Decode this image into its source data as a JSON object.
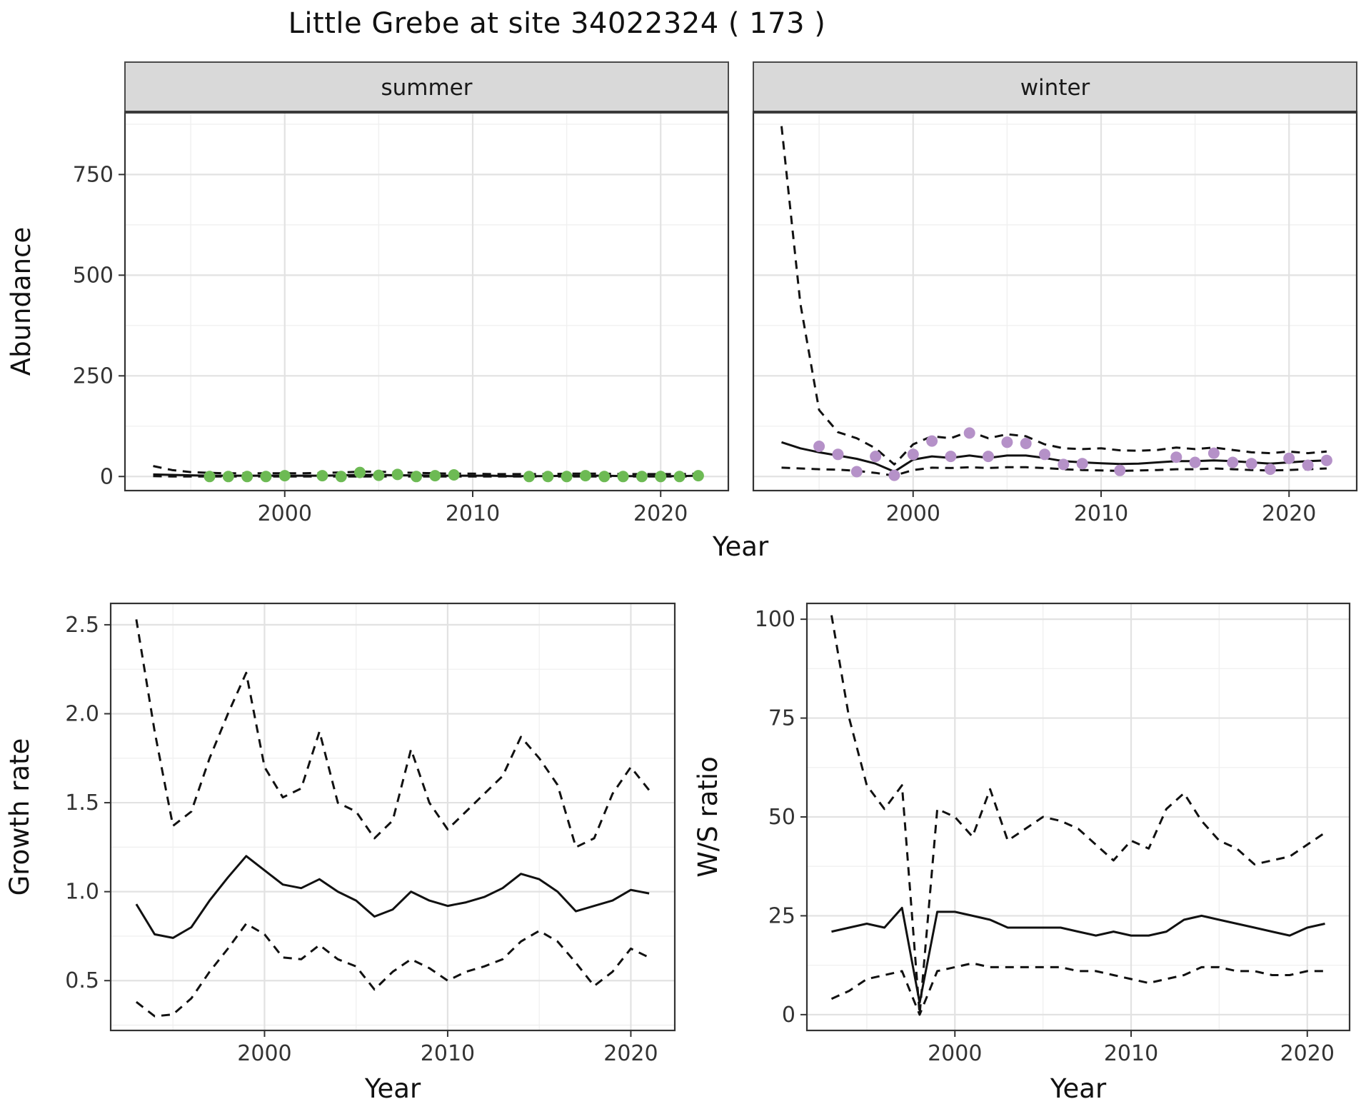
{
  "title": "Little Grebe at site 34022324 ( 173 )",
  "colors": {
    "summer_point": "#6dba54",
    "winter_point": "#b591c8",
    "line": "#111111",
    "grid_major": "#e2e2e2",
    "grid_minor": "#f0f0f0",
    "strip_bg": "#d9d9d9",
    "panel_border": "#333333",
    "tick": "#333333"
  },
  "chart_data": [
    {
      "id": "abundance-summer",
      "type": "line",
      "facet": "summer",
      "xlabel": "Year",
      "ylabel": "Abundance",
      "xlim": [
        1991.5,
        2023.6
      ],
      "ylim": [
        -35,
        905
      ],
      "xticks": [
        2000,
        2010,
        2020
      ],
      "xtick_labels": [
        "2000",
        "2010",
        "2020"
      ],
      "yticks": [
        0,
        250,
        500,
        750
      ],
      "ytick_labels": [
        "0",
        "250",
        "500",
        "750"
      ],
      "series": [
        {
          "name": "upper-ci",
          "style": "dashed",
          "x": [
            1993,
            1994,
            1995,
            1996,
            1997,
            1998,
            1999,
            2000,
            2001,
            2002,
            2003,
            2004,
            2005,
            2006,
            2007,
            2008,
            2009,
            2010,
            2011,
            2012,
            2013,
            2014,
            2015,
            2016,
            2017,
            2018,
            2019,
            2020,
            2021,
            2022
          ],
          "y": [
            26,
            16,
            11,
            9,
            8,
            8,
            8,
            8,
            8,
            9,
            10,
            12,
            12,
            10,
            9,
            8,
            7,
            7,
            6,
            6,
            6,
            6,
            7,
            7,
            7,
            6,
            6,
            6,
            6,
            7
          ]
        },
        {
          "name": "lower-ci",
          "style": "dashed",
          "x": [
            1993,
            1994,
            1995,
            1996,
            1997,
            1998,
            1999,
            2000,
            2001,
            2002,
            2003,
            2004,
            2005,
            2006,
            2007,
            2008,
            2009,
            2010,
            2011,
            2012,
            2013,
            2014,
            2015,
            2016,
            2017,
            2018,
            2019,
            2020,
            2021,
            2022
          ],
          "y": [
            1,
            0,
            0,
            0,
            0,
            0,
            0,
            0,
            0,
            0,
            0,
            0,
            0,
            0,
            0,
            0,
            0,
            0,
            0,
            0,
            0,
            0,
            0,
            0,
            0,
            0,
            0,
            0,
            0,
            0
          ]
        },
        {
          "name": "median",
          "style": "solid",
          "x": [
            1993,
            1994,
            1995,
            1996,
            1997,
            1998,
            1999,
            2000,
            2001,
            2002,
            2003,
            2004,
            2005,
            2006,
            2007,
            2008,
            2009,
            2010,
            2011,
            2012,
            2013,
            2014,
            2015,
            2016,
            2017,
            2018,
            2019,
            2020,
            2021,
            2022
          ],
          "y": [
            5,
            4,
            3,
            2,
            2,
            2,
            2,
            2,
            2,
            2,
            3,
            4,
            4,
            3,
            3,
            2,
            2,
            2,
            2,
            1,
            1,
            1,
            2,
            2,
            2,
            1,
            1,
            1,
            1,
            2
          ]
        }
      ],
      "points": {
        "name": "observed-summer",
        "color_key": "summer_point",
        "x": [
          1996,
          1997,
          1998,
          1999,
          2000,
          2002,
          2003,
          2004,
          2005,
          2006,
          2007,
          2008,
          2009,
          2013,
          2014,
          2015,
          2016,
          2017,
          2018,
          2019,
          2020,
          2021,
          2022
        ],
        "y": [
          0,
          0,
          0,
          0,
          2,
          2,
          0,
          10,
          3,
          5,
          0,
          2,
          4,
          0,
          0,
          0,
          2,
          0,
          0,
          0,
          0,
          0,
          2
        ]
      }
    },
    {
      "id": "abundance-winter",
      "type": "line",
      "facet": "winter",
      "xlabel": "Year",
      "ylabel": "Abundance",
      "xlim": [
        1991.5,
        2023.6
      ],
      "ylim": [
        -35,
        905
      ],
      "xticks": [
        2000,
        2010,
        2020
      ],
      "xtick_labels": [
        "2000",
        "2010",
        "2020"
      ],
      "yticks": [
        0,
        250,
        500,
        750
      ],
      "ytick_labels": [
        "0",
        "250",
        "500",
        "750"
      ],
      "series": [
        {
          "name": "upper-ci",
          "style": "dashed",
          "x": [
            1993,
            1994,
            1995,
            1996,
            1997,
            1998,
            1999,
            2000,
            2001,
            2002,
            2003,
            2004,
            2005,
            2006,
            2007,
            2008,
            2009,
            2010,
            2011,
            2012,
            2013,
            2014,
            2015,
            2016,
            2017,
            2018,
            2019,
            2020,
            2021,
            2022
          ],
          "y": [
            870,
            430,
            165,
            110,
            95,
            70,
            30,
            80,
            100,
            95,
            112,
            95,
            105,
            100,
            80,
            70,
            68,
            70,
            65,
            64,
            66,
            72,
            68,
            72,
            66,
            60,
            58,
            62,
            58,
            62
          ]
        },
        {
          "name": "lower-ci",
          "style": "dashed",
          "x": [
            1993,
            1994,
            1995,
            1996,
            1997,
            1998,
            1999,
            2000,
            2001,
            2002,
            2003,
            2004,
            2005,
            2006,
            2007,
            2008,
            2009,
            2010,
            2011,
            2012,
            2013,
            2014,
            2015,
            2016,
            2017,
            2018,
            2019,
            2020,
            2021,
            2022
          ],
          "y": [
            22,
            20,
            18,
            17,
            14,
            9,
            2,
            16,
            22,
            21,
            23,
            21,
            23,
            23,
            21,
            18,
            16,
            15,
            14,
            15,
            16,
            18,
            18,
            20,
            18,
            16,
            15,
            16,
            18,
            20
          ]
        },
        {
          "name": "median",
          "style": "solid",
          "x": [
            1993,
            1994,
            1995,
            1996,
            1997,
            1998,
            1999,
            2000,
            2001,
            2002,
            2003,
            2004,
            2005,
            2006,
            2007,
            2008,
            2009,
            2010,
            2011,
            2012,
            2013,
            2014,
            2015,
            2016,
            2017,
            2018,
            2019,
            2020,
            2021,
            2022
          ],
          "y": [
            85,
            70,
            60,
            52,
            44,
            32,
            12,
            42,
            50,
            46,
            52,
            46,
            52,
            52,
            46,
            38,
            35,
            33,
            31,
            32,
            35,
            38,
            38,
            40,
            38,
            35,
            32,
            35,
            38,
            40
          ]
        }
      ],
      "points": {
        "name": "observed-winter",
        "color_key": "winter_point",
        "x": [
          1995,
          1996,
          1997,
          1998,
          1999,
          2000,
          2001,
          2002,
          2003,
          2004,
          2005,
          2006,
          2007,
          2008,
          2009,
          2011,
          2014,
          2015,
          2016,
          2017,
          2018,
          2019,
          2020,
          2021,
          2022
        ],
        "y": [
          75,
          55,
          12,
          50,
          3,
          55,
          88,
          50,
          108,
          50,
          85,
          82,
          55,
          30,
          32,
          15,
          48,
          35,
          58,
          35,
          32,
          18,
          45,
          28,
          40
        ]
      }
    },
    {
      "id": "growth-rate",
      "type": "line",
      "facet": null,
      "xlabel": "Year",
      "ylabel": "Growth rate",
      "xlim": [
        1991.6,
        2022.4
      ],
      "ylim": [
        0.22,
        2.62
      ],
      "xticks": [
        2000,
        2010,
        2020
      ],
      "xtick_labels": [
        "2000",
        "2010",
        "2020"
      ],
      "yticks": [
        0.5,
        1.0,
        1.5,
        2.0,
        2.5
      ],
      "ytick_labels": [
        "0.5",
        "1.0",
        "1.5",
        "2.0",
        "2.5"
      ],
      "series": [
        {
          "name": "upper-ci",
          "style": "dashed",
          "x": [
            1993,
            1994,
            1995,
            1996,
            1997,
            1998,
            1999,
            2000,
            2001,
            2002,
            2003,
            2004,
            2005,
            2006,
            2007,
            2008,
            2009,
            2010,
            2011,
            2012,
            2013,
            2014,
            2015,
            2016,
            2017,
            2018,
            2019,
            2020,
            2021
          ],
          "y": [
            2.53,
            1.9,
            1.37,
            1.45,
            1.75,
            2.0,
            2.23,
            1.7,
            1.53,
            1.58,
            1.9,
            1.5,
            1.45,
            1.3,
            1.4,
            1.8,
            1.5,
            1.35,
            1.45,
            1.55,
            1.65,
            1.87,
            1.75,
            1.6,
            1.25,
            1.3,
            1.55,
            1.7,
            1.57
          ]
        },
        {
          "name": "lower-ci",
          "style": "dashed",
          "x": [
            1993,
            1994,
            1995,
            1996,
            1997,
            1998,
            1999,
            2000,
            2001,
            2002,
            2003,
            2004,
            2005,
            2006,
            2007,
            2008,
            2009,
            2010,
            2011,
            2012,
            2013,
            2014,
            2015,
            2016,
            2017,
            2018,
            2019,
            2020,
            2021
          ],
          "y": [
            0.38,
            0.3,
            0.31,
            0.4,
            0.55,
            0.68,
            0.82,
            0.76,
            0.63,
            0.62,
            0.7,
            0.62,
            0.58,
            0.45,
            0.55,
            0.62,
            0.57,
            0.5,
            0.55,
            0.58,
            0.62,
            0.72,
            0.78,
            0.72,
            0.6,
            0.47,
            0.55,
            0.68,
            0.63
          ]
        },
        {
          "name": "median",
          "style": "solid",
          "x": [
            1993,
            1994,
            1995,
            1996,
            1997,
            1998,
            1999,
            2000,
            2001,
            2002,
            2003,
            2004,
            2005,
            2006,
            2007,
            2008,
            2009,
            2010,
            2011,
            2012,
            2013,
            2014,
            2015,
            2016,
            2017,
            2018,
            2019,
            2020,
            2021
          ],
          "y": [
            0.93,
            0.76,
            0.74,
            0.8,
            0.95,
            1.08,
            1.2,
            1.12,
            1.04,
            1.02,
            1.07,
            1.0,
            0.95,
            0.86,
            0.9,
            1.0,
            0.95,
            0.92,
            0.94,
            0.97,
            1.02,
            1.1,
            1.07,
            1.0,
            0.89,
            0.92,
            0.95,
            1.01,
            0.99
          ]
        }
      ],
      "points": null
    },
    {
      "id": "ws-ratio",
      "type": "line",
      "facet": null,
      "xlabel": "Year",
      "ylabel": "W/S ratio",
      "xlim": [
        1991.6,
        2022.4
      ],
      "ylim": [
        -4,
        104
      ],
      "xticks": [
        2000,
        2010,
        2020
      ],
      "xtick_labels": [
        "2000",
        "2010",
        "2020"
      ],
      "yticks": [
        0,
        25,
        50,
        75,
        100
      ],
      "ytick_labels": [
        "0",
        "25",
        "50",
        "75",
        "100"
      ],
      "series": [
        {
          "name": "upper-ci",
          "style": "dashed",
          "x": [
            1993,
            1994,
            1995,
            1996,
            1997,
            1998,
            1999,
            2000,
            2001,
            2002,
            2003,
            2004,
            2005,
            2006,
            2007,
            2008,
            2009,
            2010,
            2011,
            2012,
            2013,
            2014,
            2015,
            2016,
            2017,
            2018,
            2019,
            2020,
            2021
          ],
          "y": [
            101,
            75,
            58,
            52,
            58,
            0,
            52,
            50,
            45,
            57,
            44,
            47,
            50,
            49,
            47,
            43,
            39,
            44,
            42,
            52,
            56,
            49,
            44,
            42,
            38,
            39,
            40,
            43,
            46
          ]
        },
        {
          "name": "lower-ci",
          "style": "dashed",
          "x": [
            1993,
            1994,
            1995,
            1996,
            1997,
            1998,
            1999,
            2000,
            2001,
            2002,
            2003,
            2004,
            2005,
            2006,
            2007,
            2008,
            2009,
            2010,
            2011,
            2012,
            2013,
            2014,
            2015,
            2016,
            2017,
            2018,
            2019,
            2020,
            2021
          ],
          "y": [
            4,
            6,
            9,
            10,
            11,
            0,
            11,
            12,
            13,
            12,
            12,
            12,
            12,
            12,
            11,
            11,
            10,
            9,
            8,
            9,
            10,
            12,
            12,
            11,
            11,
            10,
            10,
            11,
            11
          ]
        },
        {
          "name": "median",
          "style": "solid",
          "x": [
            1993,
            1994,
            1995,
            1996,
            1997,
            1998,
            1999,
            2000,
            2001,
            2002,
            2003,
            2004,
            2005,
            2006,
            2007,
            2008,
            2009,
            2010,
            2011,
            2012,
            2013,
            2014,
            2015,
            2016,
            2017,
            2018,
            2019,
            2020,
            2021
          ],
          "y": [
            21,
            22,
            23,
            22,
            27,
            3,
            26,
            26,
            25,
            24,
            22,
            22,
            22,
            22,
            21,
            20,
            21,
            20,
            20,
            21,
            24,
            25,
            24,
            23,
            22,
            21,
            20,
            22,
            23
          ]
        }
      ],
      "points": null
    }
  ]
}
